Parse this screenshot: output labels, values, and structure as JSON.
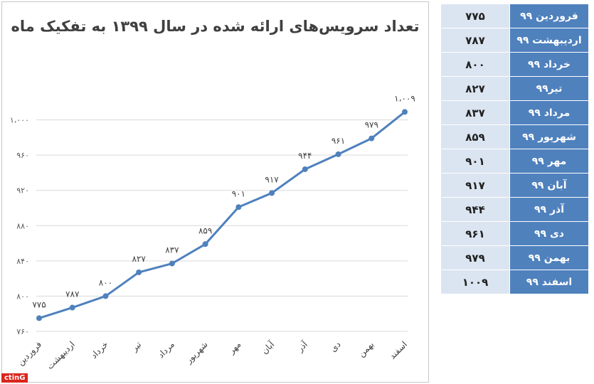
{
  "chart_data": {
    "type": "line",
    "title": "تعداد سرویس‌های ارائه شده در سال ۱۳۹۹ به تفکیک ماه",
    "categories": [
      "فروردین",
      "اردیبهشت",
      "خرداد",
      "تیر",
      "مرداد",
      "شهریور",
      "مهر",
      "آبان",
      "آذر",
      "دی",
      "بهمن",
      "اسفند"
    ],
    "values": [
      775,
      787,
      800,
      827,
      837,
      859,
      901,
      917,
      944,
      961,
      979,
      1009
    ],
    "data_labels": [
      "۷۷۵",
      "۷۸۷",
      "۸۰۰",
      "۸۲۷",
      "۸۳۷",
      "۸۵۹",
      "۹۰۱",
      "۹۱۷",
      "۹۴۴",
      "۹۶۱",
      "۹۷۹",
      "۱،۰۰۹"
    ],
    "ylim": [
      760,
      1040
    ],
    "yticks": [
      760,
      800,
      840,
      880,
      920,
      960,
      1000
    ],
    "ytick_labels": [
      "۷۶۰",
      "۸۰۰",
      "۸۴۰",
      "۸۸۰",
      "۹۲۰",
      "۹۶۰",
      "۱،۰۰۰"
    ],
    "xlabel": "",
    "ylabel": "",
    "grid": true,
    "legend": "none",
    "line_color": "#4f81bd"
  },
  "table": {
    "rows": [
      {
        "label": "فروردین ۹۹",
        "value": "۷۷۵"
      },
      {
        "label": "اردیبهشت ۹۹",
        "value": "۷۸۷"
      },
      {
        "label": "خرداد ۹۹",
        "value": "۸۰۰"
      },
      {
        "label": "تیر۹۹",
        "value": "۸۲۷"
      },
      {
        "label": "مرداد ۹۹",
        "value": "۸۳۷"
      },
      {
        "label": "شهریور ۹۹",
        "value": "۸۵۹"
      },
      {
        "label": "مهر ۹۹",
        "value": "۹۰۱"
      },
      {
        "label": "آبان ۹۹",
        "value": "۹۱۷"
      },
      {
        "label": "آذر ۹۹",
        "value": "۹۴۴"
      },
      {
        "label": "دی ۹۹",
        "value": "۹۶۱"
      },
      {
        "label": "بهمن ۹۹",
        "value": "۹۷۹"
      },
      {
        "label": "اسفند ۹۹",
        "value": "۱۰۰۹"
      }
    ]
  },
  "logo": {
    "text": "ctinG"
  }
}
